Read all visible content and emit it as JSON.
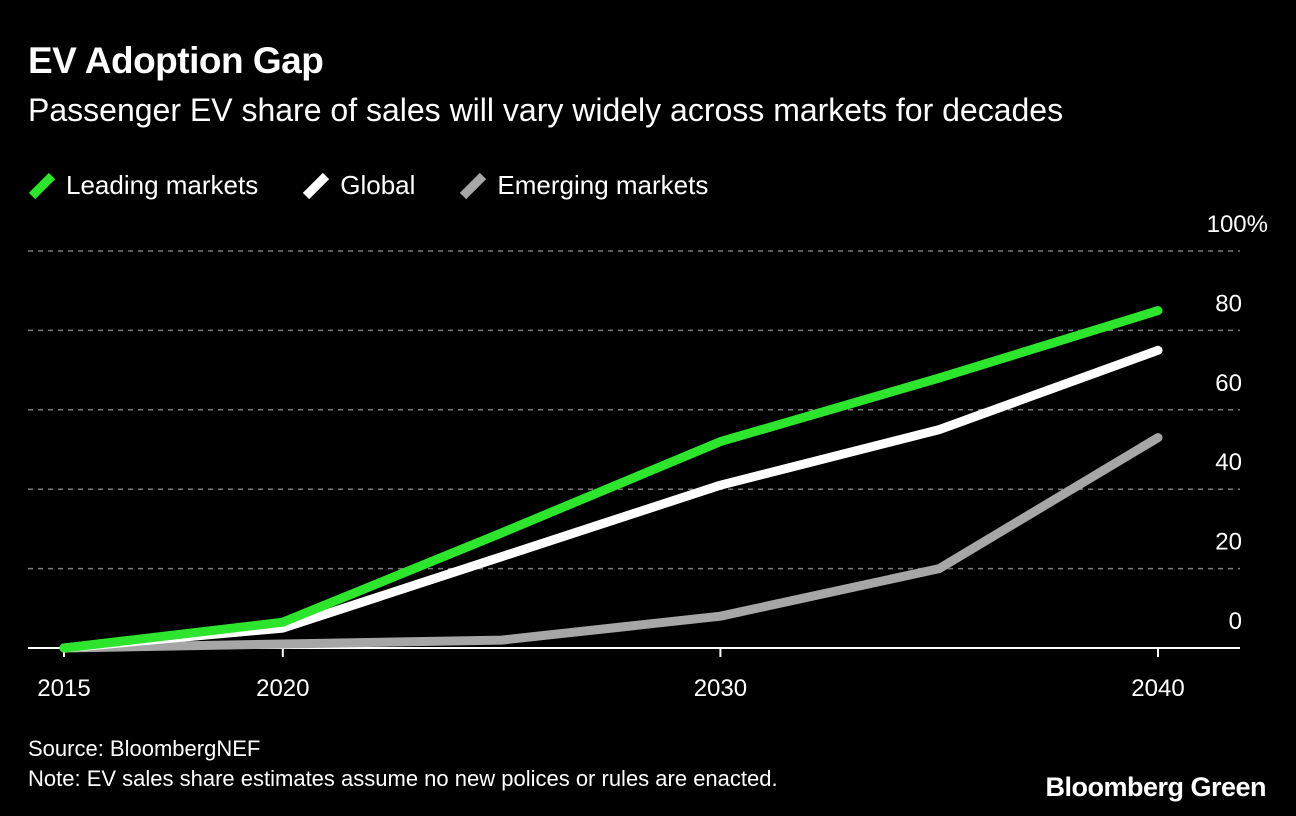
{
  "header": {
    "title": "EV Adoption Gap",
    "subtitle": "Passenger EV share of sales will vary widely across markets for decades"
  },
  "footer": {
    "source": "Source: BloombergNEF",
    "note": "Note: EV sales share estimates assume no new polices or rules are enacted.",
    "brand": "Bloomberg Green"
  },
  "chart_data": {
    "type": "line",
    "title": "EV Adoption Gap",
    "subtitle": "Passenger EV share of sales will vary widely across markets for decades",
    "xlabel": "",
    "ylabel": "",
    "x": [
      2015,
      2020,
      2025,
      2030,
      2035,
      2040
    ],
    "xlim": [
      2014,
      2042
    ],
    "ylim": [
      0,
      100
    ],
    "x_ticks": [
      2015,
      2020,
      2030,
      2040
    ],
    "x_tick_labels": [
      "2015",
      "2020",
      "2030",
      "2040"
    ],
    "y_ticks": [
      0,
      20,
      40,
      60,
      80,
      100
    ],
    "y_tick_labels": [
      "0",
      "20",
      "40",
      "60",
      "80",
      "100%"
    ],
    "grid": true,
    "legend_position": "top-left",
    "series": [
      {
        "name": "Leading markets",
        "color": "#2ee52e",
        "values": [
          0,
          6.5,
          29,
          52,
          68,
          85
        ]
      },
      {
        "name": "Global",
        "color": "#ffffff",
        "values": [
          0,
          5,
          23,
          41,
          55,
          75
        ]
      },
      {
        "name": "Emerging markets",
        "color": "#a6a6a6",
        "values": [
          0,
          1,
          2,
          8,
          20,
          53
        ]
      }
    ]
  }
}
